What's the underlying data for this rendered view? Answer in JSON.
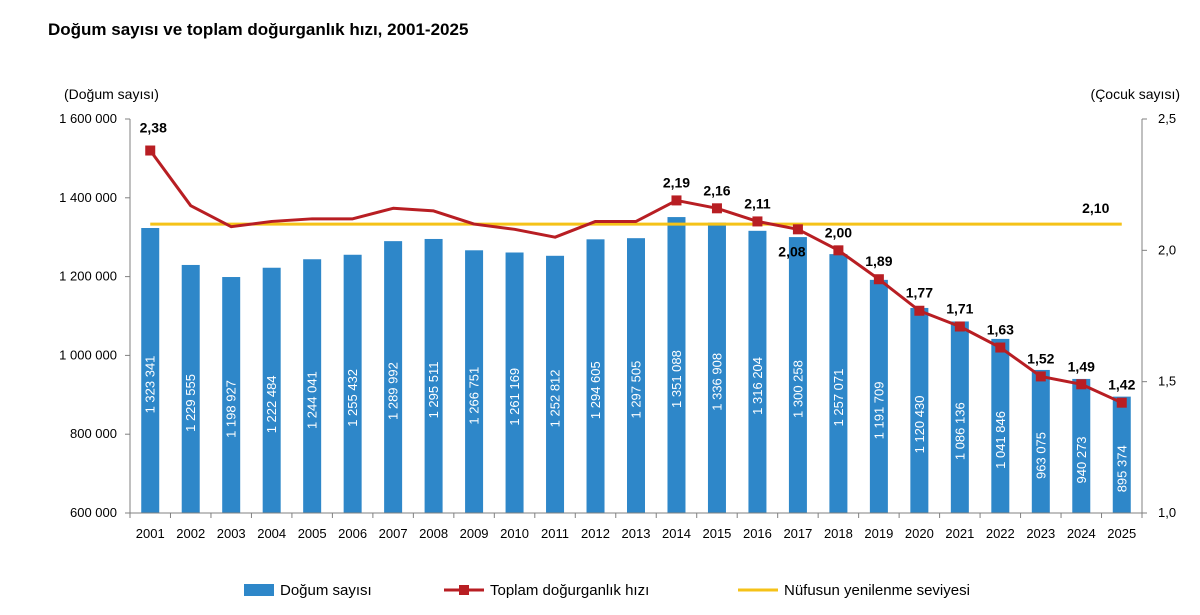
{
  "title": "Doğum sayısı ve toplam doğurganlık hızı, 2001-2025",
  "chart_data": {
    "type": "bar",
    "title": "Doğum sayısı ve toplam doğurganlık hızı, 2001-2025",
    "categories": [
      "2001",
      "2002",
      "2003",
      "2004",
      "2005",
      "2006",
      "2007",
      "2008",
      "2009",
      "2010",
      "2011",
      "2012",
      "2013",
      "2014",
      "2015",
      "2016",
      "2017",
      "2018",
      "2019",
      "2020",
      "2021",
      "2022",
      "2023",
      "2024",
      "2025"
    ],
    "y_left": {
      "label": "(Doğum sayısı)",
      "lim": [
        600000,
        1600000
      ],
      "ticks": [
        600000,
        800000,
        1000000,
        1200000,
        1400000,
        1600000
      ],
      "tick_labels": [
        "600 000",
        "800 000",
        "1 000 000",
        "1 200 000",
        "1 400 000",
        "1 600 000"
      ]
    },
    "y_right": {
      "label": "(Çocuk sayısı)",
      "lim": [
        1.0,
        2.5
      ],
      "ticks": [
        1.0,
        1.5,
        2.0,
        2.5
      ],
      "tick_labels": [
        "1,0",
        "1,5",
        "2,0",
        "2,5"
      ]
    },
    "series": [
      {
        "name": "Doğum sayısı",
        "type": "bar",
        "axis": "left",
        "color": "#2e87c9",
        "values": [
          1323341,
          1229555,
          1198927,
          1222484,
          1244041,
          1255432,
          1289992,
          1295511,
          1266751,
          1261169,
          1252812,
          1294605,
          1297505,
          1351088,
          1336908,
          1316204,
          1300258,
          1257071,
          1191709,
          1120430,
          1086136,
          1041846,
          963075,
          940273,
          895374
        ],
        "labels": [
          "1 323 341",
          "1 229 555",
          "1 198 927",
          "1 222 484",
          "1 244 041",
          "1 255 432",
          "1 289 992",
          "1 295 511",
          "1 266 751",
          "1 261 169",
          "1 252 812",
          "1 294 605",
          "1 297 505",
          "1 351 088",
          "1 336 908",
          "1 316 204",
          "1 300 258",
          "1 257 071",
          "1 191 709",
          "1 120 430",
          "1 086 136",
          "1 041 846",
          "963 075",
          "940 273",
          "895 374"
        ]
      },
      {
        "name": "Toplam doğurganlık hızı",
        "type": "line",
        "axis": "right",
        "color": "#b81e23",
        "marker_from_index": 13,
        "values": [
          2.38,
          2.17,
          2.09,
          2.11,
          2.12,
          2.12,
          2.16,
          2.15,
          2.1,
          2.08,
          2.05,
          2.11,
          2.11,
          2.19,
          2.16,
          2.11,
          2.08,
          2.0,
          1.89,
          1.77,
          1.71,
          1.63,
          1.52,
          1.49,
          1.42
        ],
        "labels": {
          "0": "2,38",
          "13": "2,19",
          "14": "2,16",
          "15": "2,11",
          "16": "2,08",
          "17": "2,00",
          "18": "1,89",
          "19": "1,77",
          "20": "1,71",
          "21": "1,63",
          "22": "1,52",
          "23": "1,49",
          "24": "1,42"
        }
      },
      {
        "name": "Nüfusun yenilenme seviyesi",
        "type": "line",
        "axis": "right",
        "color": "#f5c218",
        "value": 2.1,
        "label": "2,10"
      }
    ],
    "legend_position": "bottom",
    "grid": false
  }
}
